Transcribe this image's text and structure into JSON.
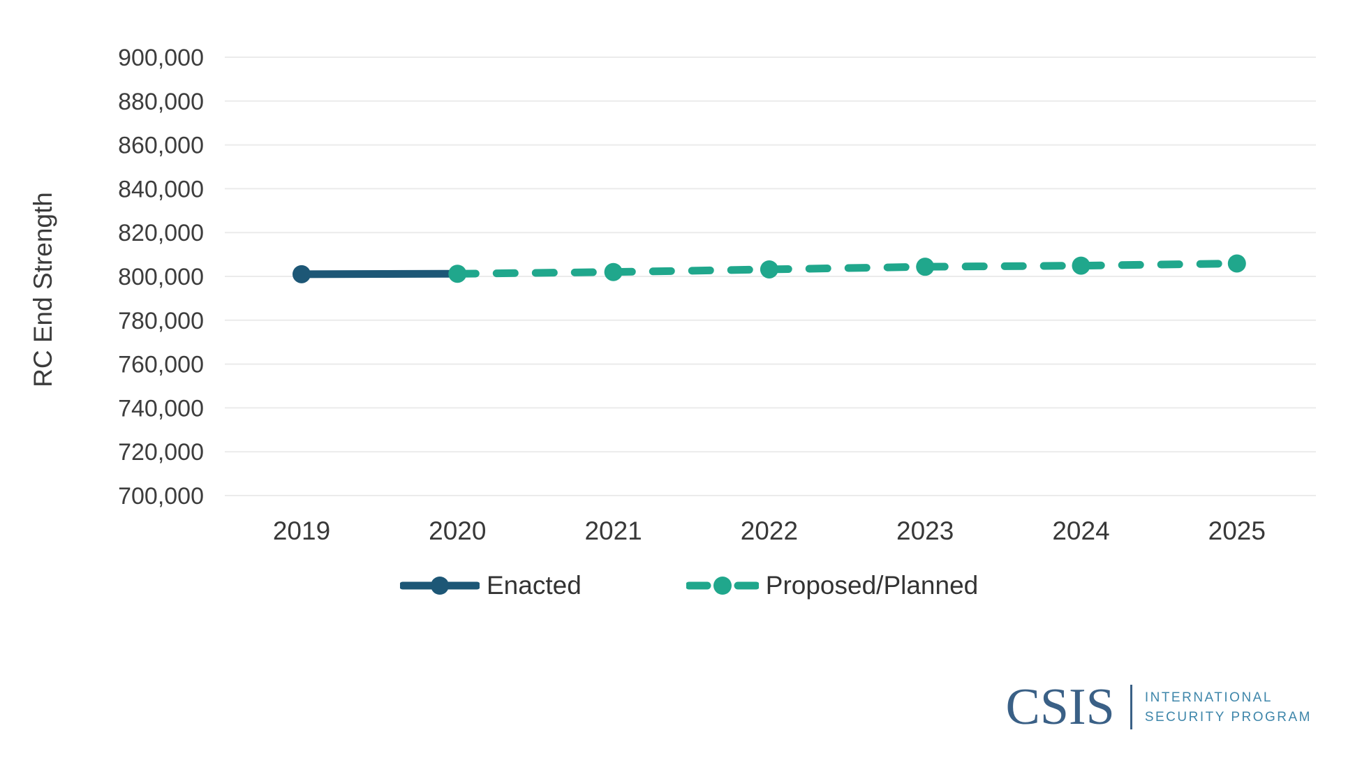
{
  "chart_data": {
    "type": "line",
    "title": "",
    "ylabel": "RC End Strength",
    "xlabel": "",
    "x": [
      2019,
      2020,
      2021,
      2022,
      2023,
      2024,
      2025
    ],
    "xtick_labels": [
      "2019",
      "2020",
      "2021",
      "2022",
      "2023",
      "2024",
      "2025"
    ],
    "series": [
      {
        "name": "Enacted",
        "line_style": "solid",
        "color": "#1d5776",
        "x": [
          2019,
          2020
        ],
        "values": [
          801000,
          801200
        ],
        "marker_years": [
          2019
        ]
      },
      {
        "name": "Proposed/Planned",
        "line_style": "dashed",
        "color": "#20a78c",
        "x": [
          2020,
          2021,
          2022,
          2023,
          2024,
          2025
        ],
        "values": [
          801200,
          802000,
          803200,
          804400,
          804900,
          805900
        ],
        "marker_years": [
          2020,
          2021,
          2022,
          2023,
          2024,
          2025
        ]
      }
    ],
    "ylim": [
      700000,
      900000
    ],
    "ytick_step": 20000,
    "ytick_labels": [
      "900,000",
      "880,000",
      "860,000",
      "840,000",
      "820,000",
      "800,000",
      "780,000",
      "760,000",
      "740,000",
      "720,000",
      "700,000"
    ],
    "grid": "horizontal",
    "legend_position": "bottom"
  },
  "legend": {
    "items": [
      {
        "label": "Enacted"
      },
      {
        "label": "Proposed/Planned"
      }
    ]
  },
  "branding": {
    "org": "CSIS",
    "program_line1": "INTERNATIONAL",
    "program_line2": "SECURITY PROGRAM",
    "org_color": "#3a6086",
    "program_color": "#3e86aa"
  },
  "colors": {
    "background": "#ffffff",
    "grid": "#ebebeb",
    "tick_label": "#3d3d3d",
    "axis_title": "#3b3b3b",
    "legend_text": "#333333"
  }
}
